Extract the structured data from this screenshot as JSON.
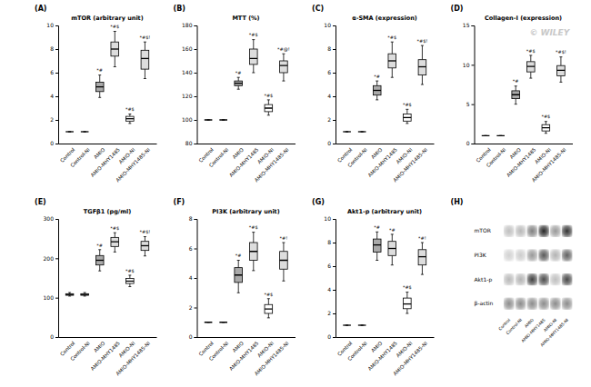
{
  "chart_data": [
    {
      "type": "box",
      "label": "(A)",
      "title": "mTOR (arbitrary unit)",
      "ylim": [
        0,
        10
      ],
      "yticks": [
        0,
        2,
        4,
        6,
        8,
        10
      ],
      "categories": [
        "Control",
        "Control-NI",
        "AMIO",
        "AMIO-MHY1485",
        "AMIO-NI",
        "AMIO-MHY1485-NI"
      ],
      "boxes": [
        {
          "med": 1.0,
          "q1": 1.0,
          "q3": 1.0,
          "whislo": 1.0,
          "whishi": 1.0
        },
        {
          "med": 1.0,
          "q1": 1.0,
          "q3": 1.0,
          "whislo": 1.0,
          "whishi": 1.0
        },
        {
          "med": 4.8,
          "q1": 4.4,
          "q3": 5.2,
          "whislo": 3.9,
          "whishi": 5.8
        },
        {
          "med": 8.0,
          "q1": 7.4,
          "q3": 8.6,
          "whislo": 6.5,
          "whishi": 9.5
        },
        {
          "med": 2.1,
          "q1": 1.9,
          "q3": 2.3,
          "whislo": 1.7,
          "whishi": 2.5
        },
        {
          "med": 7.2,
          "q1": 6.3,
          "q3": 7.9,
          "whislo": 5.5,
          "whishi": 8.6
        }
      ],
      "annotations": [
        null,
        null,
        "*#",
        "*#$",
        "*#$",
        "*#$!"
      ],
      "colors": [
        "white",
        "white",
        "#aaaaaa",
        "#dddddd",
        "white",
        "#dddddd"
      ]
    },
    {
      "type": "box",
      "label": "(B)",
      "title": "MTT (%)",
      "ylim": [
        80,
        180
      ],
      "yticks": [
        80,
        100,
        120,
        140,
        160,
        180
      ],
      "categories": [
        "Control",
        "Control-NI",
        "AMIO",
        "AMIO-MHY1485",
        "AMIO-NI",
        "AMIO-MHY1485-NI"
      ],
      "boxes": [
        {
          "med": 100.0,
          "q1": 100.0,
          "q3": 100.0,
          "whislo": 100.0,
          "whishi": 100.0
        },
        {
          "med": 100.0,
          "q1": 100.0,
          "q3": 100.0,
          "whislo": 100.0,
          "whishi": 100.0
        },
        {
          "med": 131.0,
          "q1": 129.0,
          "q3": 133.0,
          "whislo": 126.0,
          "whishi": 136.0
        },
        {
          "med": 152.0,
          "q1": 147.0,
          "q3": 160.0,
          "whislo": 140.0,
          "whishi": 168.0
        },
        {
          "med": 110.0,
          "q1": 107.0,
          "q3": 113.0,
          "whislo": 104.0,
          "whishi": 117.0
        },
        {
          "med": 146.0,
          "q1": 140.0,
          "q3": 150.0,
          "whislo": 133.0,
          "whishi": 156.0
        }
      ],
      "annotations": [
        null,
        null,
        "*#",
        "*#$",
        "*#$",
        "*#@!"
      ],
      "colors": [
        "white",
        "white",
        "#aaaaaa",
        "#dddddd",
        "white",
        "#dddddd"
      ]
    },
    {
      "type": "box",
      "label": "(C)",
      "title": "α-SMA (expression)",
      "ylim": [
        0,
        10
      ],
      "yticks": [
        0,
        2,
        4,
        6,
        8,
        10
      ],
      "categories": [
        "Control",
        "Control-NI",
        "AMIO",
        "AMIO-MHY1485",
        "AMIO-NI",
        "AMIO-MHY1485-NI"
      ],
      "boxes": [
        {
          "med": 1.0,
          "q1": 1.0,
          "q3": 1.0,
          "whislo": 1.0,
          "whishi": 1.0
        },
        {
          "med": 1.0,
          "q1": 1.0,
          "q3": 1.0,
          "whislo": 1.0,
          "whishi": 1.0
        },
        {
          "med": 4.5,
          "q1": 4.1,
          "q3": 4.9,
          "whislo": 3.7,
          "whishi": 5.3
        },
        {
          "med": 7.0,
          "q1": 6.4,
          "q3": 7.6,
          "whislo": 5.6,
          "whishi": 8.6
        },
        {
          "med": 2.2,
          "q1": 1.9,
          "q3": 2.5,
          "whislo": 1.7,
          "whishi": 2.9
        },
        {
          "med": 6.5,
          "q1": 5.8,
          "q3": 7.1,
          "whislo": 5.0,
          "whishi": 8.3
        }
      ],
      "annotations": [
        null,
        null,
        "*#",
        "*#$",
        "*#$",
        "*#$!"
      ],
      "colors": [
        "white",
        "white",
        "#aaaaaa",
        "#dddddd",
        "white",
        "#dddddd"
      ]
    },
    {
      "type": "box",
      "label": "(D)",
      "title": "Collagen-I (expression)",
      "ylim": [
        0,
        15
      ],
      "yticks": [
        0,
        5,
        10,
        15
      ],
      "categories": [
        "Control",
        "Control-NI",
        "AMIO",
        "AMIO-MHY1485",
        "AMIO-NI",
        "AMIO-MHY1485-NI"
      ],
      "boxes": [
        {
          "med": 1.0,
          "q1": 1.0,
          "q3": 1.0,
          "whislo": 1.0,
          "whishi": 1.0
        },
        {
          "med": 1.0,
          "q1": 1.0,
          "q3": 1.0,
          "whislo": 1.0,
          "whishi": 1.0
        },
        {
          "med": 6.2,
          "q1": 5.7,
          "q3": 6.7,
          "whislo": 5.0,
          "whishi": 7.3
        },
        {
          "med": 9.8,
          "q1": 9.1,
          "q3": 10.4,
          "whislo": 8.3,
          "whishi": 11.2
        },
        {
          "med": 2.0,
          "q1": 1.6,
          "q3": 2.4,
          "whislo": 1.3,
          "whishi": 2.8
        },
        {
          "med": 9.3,
          "q1": 8.6,
          "q3": 9.9,
          "whislo": 7.8,
          "whishi": 11.0
        }
      ],
      "annotations": [
        null,
        null,
        "*#",
        "*#$",
        "*#$",
        "*#$!"
      ],
      "colors": [
        "white",
        "white",
        "#aaaaaa",
        "#dddddd",
        "white",
        "#dddddd"
      ],
      "watermark": {
        "text": "© WILEY",
        "color": "#c8c8c8"
      }
    },
    {
      "type": "box",
      "label": "(E)",
      "title": "TGFβ1 (pg/ml)",
      "ylim": [
        0,
        300
      ],
      "yticks": [
        0,
        100,
        200,
        300
      ],
      "categories": [
        "Control",
        "Control-NI",
        "AMIO",
        "AMIO-MHY1485",
        "AMIO-NI",
        "AMIO-MHY1485-NI"
      ],
      "boxes": [
        {
          "med": 108.0,
          "q1": 106.0,
          "q3": 110.0,
          "whislo": 104.0,
          "whishi": 113.0
        },
        {
          "med": 108.0,
          "q1": 106.0,
          "q3": 110.0,
          "whislo": 104.0,
          "whishi": 113.0
        },
        {
          "med": 195.0,
          "q1": 183.0,
          "q3": 207.0,
          "whislo": 168.0,
          "whishi": 222.0
        },
        {
          "med": 242.0,
          "q1": 230.0,
          "q3": 253.0,
          "whislo": 216.0,
          "whishi": 265.0
        },
        {
          "med": 142.0,
          "q1": 136.0,
          "q3": 149.0,
          "whislo": 128.0,
          "whishi": 157.0
        },
        {
          "med": 232.0,
          "q1": 220.0,
          "q3": 243.0,
          "whislo": 206.0,
          "whishi": 255.0
        }
      ],
      "annotations": [
        null,
        null,
        "*#",
        "*#$",
        "*#$",
        "*#$!"
      ],
      "colors": [
        "white",
        "white",
        "#aaaaaa",
        "#dddddd",
        "white",
        "#dddddd"
      ]
    },
    {
      "type": "box",
      "label": "(F)",
      "title": "PI3K (arbitrary unit)",
      "ylim": [
        0,
        8
      ],
      "yticks": [
        0,
        2,
        4,
        6,
        8
      ],
      "categories": [
        "Control",
        "Control-NI",
        "AMIO",
        "AMIO-MHY1485",
        "AMIO-NI",
        "AMIO-MHY1485-NI"
      ],
      "boxes": [
        {
          "med": 1.0,
          "q1": 1.0,
          "q3": 1.0,
          "whislo": 1.0,
          "whishi": 1.0
        },
        {
          "med": 1.0,
          "q1": 1.0,
          "q3": 1.0,
          "whislo": 1.0,
          "whishi": 1.0
        },
        {
          "med": 4.2,
          "q1": 3.7,
          "q3": 4.7,
          "whislo": 3.0,
          "whishi": 5.2
        },
        {
          "med": 5.8,
          "q1": 5.2,
          "q3": 6.4,
          "whislo": 4.5,
          "whishi": 7.1
        },
        {
          "med": 1.9,
          "q1": 1.6,
          "q3": 2.2,
          "whislo": 1.3,
          "whishi": 2.6
        },
        {
          "med": 5.2,
          "q1": 4.6,
          "q3": 5.8,
          "whislo": 3.8,
          "whishi": 6.4
        }
      ],
      "annotations": [
        null,
        null,
        "*#",
        "*#$",
        "*#$",
        "*#!"
      ],
      "colors": [
        "white",
        "white",
        "#aaaaaa",
        "#dddddd",
        "white",
        "#dddddd"
      ]
    },
    {
      "type": "box",
      "label": "(G)",
      "title": "Akt1-p (arbitrary unit)",
      "ylim": [
        0,
        10
      ],
      "yticks": [
        0,
        2,
        4,
        6,
        8,
        10
      ],
      "categories": [
        "Control",
        "Control-NI",
        "AMIO",
        "AMIO-MHY1485",
        "AMIO-NI",
        "AMIO-MHY1485-NI"
      ],
      "boxes": [
        {
          "med": 1.0,
          "q1": 1.0,
          "q3": 1.0,
          "whislo": 1.0,
          "whishi": 1.0
        },
        {
          "med": 1.0,
          "q1": 1.0,
          "q3": 1.0,
          "whislo": 1.0,
          "whishi": 1.0
        },
        {
          "med": 7.8,
          "q1": 7.2,
          "q3": 8.3,
          "whislo": 6.5,
          "whishi": 8.9
        },
        {
          "med": 7.5,
          "q1": 6.9,
          "q3": 8.1,
          "whislo": 6.1,
          "whishi": 8.7
        },
        {
          "med": 2.8,
          "q1": 2.4,
          "q3": 3.3,
          "whislo": 2.0,
          "whishi": 3.8
        },
        {
          "med": 6.8,
          "q1": 6.1,
          "q3": 7.4,
          "whislo": 5.3,
          "whishi": 8.0
        }
      ],
      "annotations": [
        null,
        null,
        "*#",
        "*#",
        "*#$",
        "*#!"
      ],
      "colors": [
        "white",
        "white",
        "#aaaaaa",
        "#dddddd",
        "white",
        "#dddddd"
      ]
    },
    {
      "type": "heatmap",
      "label": "(H)",
      "rows": [
        "mTOR",
        "PI3K",
        "Akt1-p",
        "β-actin"
      ],
      "categories": [
        "Control",
        "Control-NI",
        "AMIO",
        "AMIO-MHY1485",
        "AMIO-NI",
        "AMIO-MHY1485-NI"
      ],
      "cells": [
        [
          0.75,
          0.72,
          0.5,
          0.15,
          0.6,
          0.2
        ],
        [
          0.82,
          0.8,
          0.6,
          0.35,
          0.7,
          0.38
        ],
        [
          0.72,
          0.7,
          0.25,
          0.3,
          0.75,
          0.28
        ],
        [
          0.55,
          0.55,
          0.55,
          0.55,
          0.55,
          0.55
        ]
      ],
      "zlim": [
        0,
        1
      ]
    }
  ]
}
